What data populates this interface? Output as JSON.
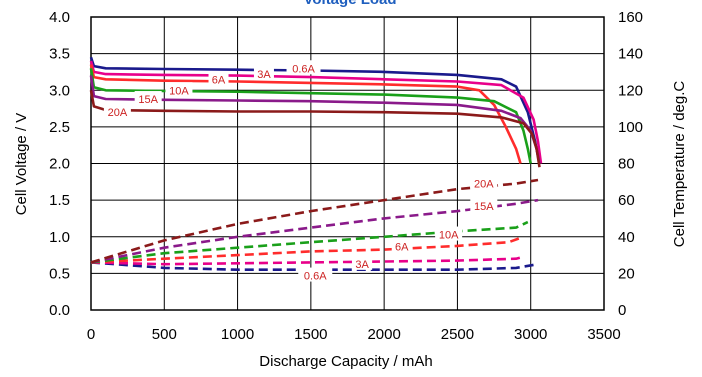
{
  "chart_data": {
    "type": "line",
    "title": "Voltage Load",
    "xlabel": "Discharge Capacity / mAh",
    "ylabel_left": "Cell  Voltage / V",
    "ylabel_right": "Cell Temperature / deg.C",
    "xlim": [
      0,
      3500
    ],
    "ylim_left": [
      0.0,
      4.0
    ],
    "ylim_right": [
      0,
      160
    ],
    "x_ticks": [
      "0",
      "500",
      "1000",
      "1500",
      "2000",
      "2500",
      "3000",
      "3500"
    ],
    "y_left_ticks": [
      "0.0",
      "0.5",
      "1.0",
      "1.5",
      "2.0",
      "2.5",
      "3.0",
      "3.5",
      "4.0"
    ],
    "y_right_ticks": [
      "0",
      "20",
      "40",
      "60",
      "80",
      "100",
      "120",
      "140",
      "160"
    ],
    "grid": true,
    "voltage_series": [
      {
        "name": "0.6A",
        "color": "#1a1a8c",
        "axis": "left",
        "points": [
          [
            0,
            3.45
          ],
          [
            20,
            3.33
          ],
          [
            100,
            3.3
          ],
          [
            500,
            3.29
          ],
          [
            1000,
            3.28
          ],
          [
            1500,
            3.27
          ],
          [
            2000,
            3.25
          ],
          [
            2500,
            3.21
          ],
          [
            2800,
            3.15
          ],
          [
            2900,
            3.05
          ],
          [
            2980,
            2.7
          ],
          [
            3030,
            2.3
          ],
          [
            3060,
            2.0
          ]
        ]
      },
      {
        "name": "3A",
        "color": "#e8008a",
        "axis": "left",
        "points": [
          [
            0,
            3.4
          ],
          [
            20,
            3.25
          ],
          [
            100,
            3.22
          ],
          [
            500,
            3.21
          ],
          [
            1000,
            3.2
          ],
          [
            1500,
            3.18
          ],
          [
            2000,
            3.15
          ],
          [
            2500,
            3.12
          ],
          [
            2800,
            3.07
          ],
          [
            2950,
            2.9
          ],
          [
            3020,
            2.6
          ],
          [
            3050,
            2.3
          ],
          [
            3070,
            2.0
          ]
        ]
      },
      {
        "name": "6A",
        "color": "#ff2c2c",
        "axis": "left",
        "points": [
          [
            0,
            3.35
          ],
          [
            20,
            3.18
          ],
          [
            100,
            3.15
          ],
          [
            500,
            3.13
          ],
          [
            1000,
            3.12
          ],
          [
            1500,
            3.1
          ],
          [
            2000,
            3.08
          ],
          [
            2500,
            3.05
          ],
          [
            2650,
            3.0
          ],
          [
            2750,
            2.8
          ],
          [
            2830,
            2.5
          ],
          [
            2900,
            2.2
          ],
          [
            2930,
            2.0
          ]
        ]
      },
      {
        "name": "10A",
        "color": "#1aa01a",
        "axis": "left",
        "points": [
          [
            0,
            3.3
          ],
          [
            20,
            3.04
          ],
          [
            100,
            3.0
          ],
          [
            500,
            2.99
          ],
          [
            1000,
            2.98
          ],
          [
            1500,
            2.96
          ],
          [
            2000,
            2.94
          ],
          [
            2500,
            2.9
          ],
          [
            2750,
            2.85
          ],
          [
            2900,
            2.7
          ],
          [
            2950,
            2.45
          ],
          [
            2980,
            2.2
          ],
          [
            3000,
            2.0
          ]
        ]
      },
      {
        "name": "15A",
        "color": "#8a1a8a",
        "axis": "left",
        "points": [
          [
            0,
            3.2
          ],
          [
            20,
            2.92
          ],
          [
            100,
            2.88
          ],
          [
            500,
            2.87
          ],
          [
            1000,
            2.86
          ],
          [
            1500,
            2.85
          ],
          [
            2000,
            2.83
          ],
          [
            2500,
            2.8
          ],
          [
            2800,
            2.72
          ],
          [
            2930,
            2.62
          ],
          [
            3000,
            2.45
          ],
          [
            3040,
            2.2
          ],
          [
            3060,
            2.0
          ]
        ]
      },
      {
        "name": "20A",
        "color": "#8b1a1a",
        "axis": "left",
        "points": [
          [
            0,
            3.0
          ],
          [
            20,
            2.78
          ],
          [
            100,
            2.73
          ],
          [
            500,
            2.72
          ],
          [
            1000,
            2.71
          ],
          [
            1500,
            2.71
          ],
          [
            2000,
            2.7
          ],
          [
            2500,
            2.68
          ],
          [
            2800,
            2.63
          ],
          [
            2950,
            2.55
          ],
          [
            3010,
            2.4
          ],
          [
            3040,
            2.2
          ],
          [
            3060,
            1.95
          ]
        ]
      }
    ],
    "temperature_series": [
      {
        "name": "0.6A",
        "color": "#1a1a8c",
        "axis": "right",
        "points": [
          [
            0,
            26
          ],
          [
            500,
            23
          ],
          [
            1000,
            22
          ],
          [
            1500,
            22
          ],
          [
            2000,
            22
          ],
          [
            2500,
            22
          ],
          [
            2900,
            23
          ],
          [
            3050,
            25
          ]
        ]
      },
      {
        "name": "3A",
        "color": "#e8008a",
        "axis": "right",
        "points": [
          [
            0,
            26
          ],
          [
            500,
            25
          ],
          [
            1000,
            25.5
          ],
          [
            1500,
            26
          ],
          [
            2000,
            26.5
          ],
          [
            2500,
            27
          ],
          [
            2900,
            28
          ],
          [
            2950,
            29
          ]
        ]
      },
      {
        "name": "6A",
        "color": "#ff2c2c",
        "axis": "right",
        "points": [
          [
            0,
            26
          ],
          [
            500,
            28
          ],
          [
            1000,
            30
          ],
          [
            1500,
            32
          ],
          [
            2000,
            33
          ],
          [
            2500,
            35
          ],
          [
            2850,
            37
          ],
          [
            2950,
            40
          ]
        ]
      },
      {
        "name": "10A",
        "color": "#1aa01a",
        "axis": "right",
        "points": [
          [
            0,
            26
          ],
          [
            500,
            31
          ],
          [
            1000,
            34
          ],
          [
            1500,
            37
          ],
          [
            2000,
            40
          ],
          [
            2500,
            43
          ],
          [
            2900,
            45
          ],
          [
            2980,
            48
          ]
        ]
      },
      {
        "name": "15A",
        "color": "#8a1a8a",
        "axis": "right",
        "points": [
          [
            0,
            26
          ],
          [
            500,
            34
          ],
          [
            1000,
            40
          ],
          [
            1500,
            45
          ],
          [
            2000,
            50
          ],
          [
            2500,
            54
          ],
          [
            2900,
            58
          ],
          [
            3050,
            60
          ]
        ]
      },
      {
        "name": "20A",
        "color": "#8b1a1a",
        "axis": "right",
        "points": [
          [
            0,
            26
          ],
          [
            500,
            38
          ],
          [
            1000,
            47
          ],
          [
            1500,
            54
          ],
          [
            2000,
            60
          ],
          [
            2500,
            66
          ],
          [
            2900,
            69
          ],
          [
            3050,
            71
          ]
        ]
      }
    ],
    "annotations": [
      {
        "text": "0.6A",
        "x": 1450,
        "y": 3.3
      },
      {
        "text": "3A",
        "x": 1180,
        "y": 3.22
      },
      {
        "text": "6A",
        "x": 870,
        "y": 3.15
      },
      {
        "text": "10A",
        "x": 600,
        "y": 3.0
      },
      {
        "text": "15A",
        "x": 390,
        "y": 2.88
      },
      {
        "text": "20A",
        "x": 180,
        "y": 2.7
      },
      {
        "text": "20A",
        "x": 2680,
        "y": 1.73
      },
      {
        "text": "15A",
        "x": 2680,
        "y": 1.42
      },
      {
        "text": "10A",
        "x": 2440,
        "y": 1.03
      },
      {
        "text": "6A",
        "x": 2120,
        "y": 0.87
      },
      {
        "text": "3A",
        "x": 1850,
        "y": 0.63
      },
      {
        "text": "0.6A",
        "x": 1530,
        "y": 0.47
      }
    ]
  }
}
